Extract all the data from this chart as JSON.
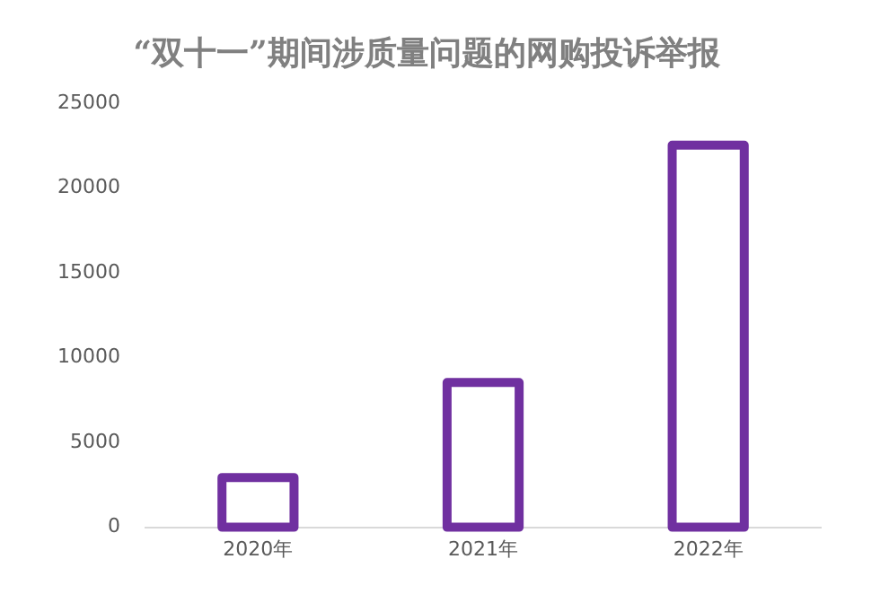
{
  "chart_data": {
    "type": "bar",
    "title": "“双十一”期间涉质量问题的网购投诉举报",
    "categories": [
      "2020年",
      "2021年",
      "2022年"
    ],
    "values": [
      3200,
      8800,
      22800
    ],
    "color": "#7030a0",
    "ylim": [
      0,
      25000
    ],
    "yticks": [
      0,
      5000,
      10000,
      15000,
      20000,
      25000
    ],
    "grid": false,
    "legend": false
  }
}
